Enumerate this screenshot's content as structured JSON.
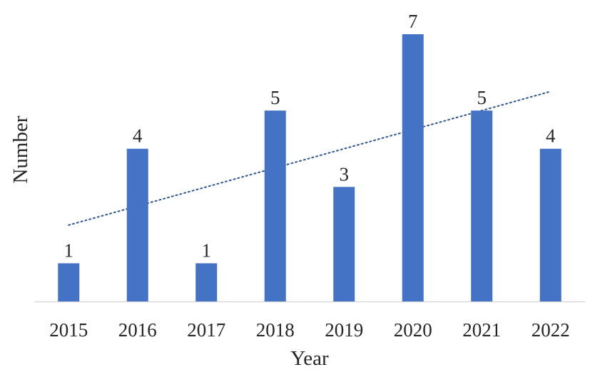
{
  "chart_data": {
    "type": "bar",
    "categories": [
      "2015",
      "2016",
      "2017",
      "2018",
      "2019",
      "2020",
      "2021",
      "2022"
    ],
    "values": [
      1,
      4,
      1,
      5,
      3,
      7,
      5,
      4
    ],
    "data_labels": [
      "1",
      "4",
      "1",
      "5",
      "3",
      "7",
      "5",
      "4"
    ],
    "xlabel": "Year",
    "ylabel": "Number",
    "ylim": [
      0,
      7
    ],
    "grid": false,
    "legend": "none",
    "trendline": {
      "type": "linear",
      "style": "dotted"
    },
    "colors": {
      "bar": "#4472C4",
      "trendline": "#2F5597",
      "axis": "#D9D9D9",
      "text": "#262626"
    }
  }
}
